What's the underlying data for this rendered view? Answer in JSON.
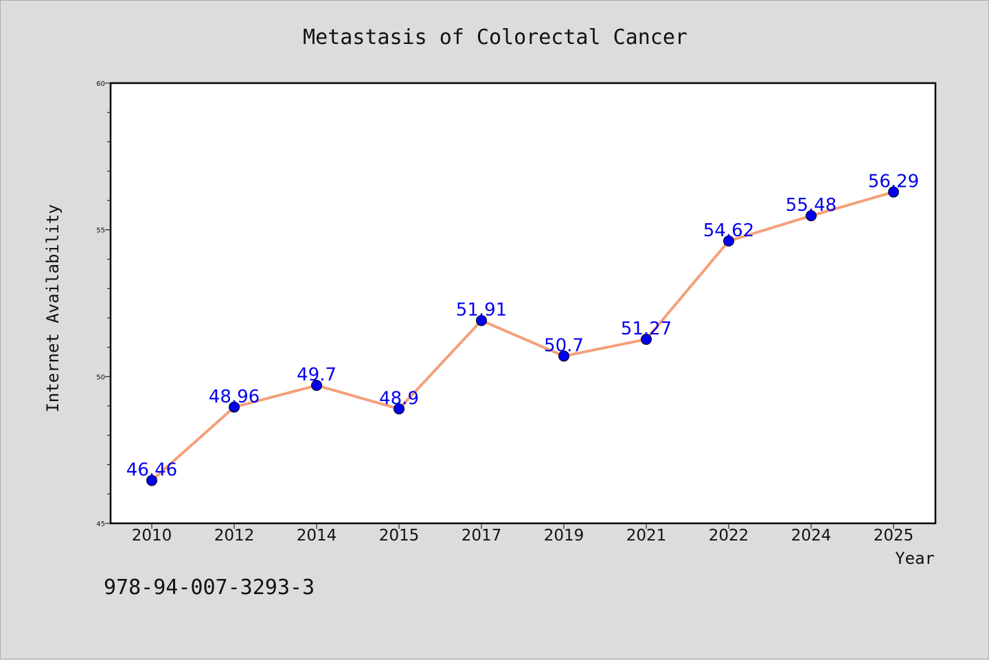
{
  "chart_data": {
    "type": "line",
    "title": "Metastasis of Colorectal Cancer",
    "xlabel": "Year",
    "ylabel": "Internet Availability",
    "categories": [
      "2010",
      "2012",
      "2014",
      "2015",
      "2017",
      "2019",
      "2021",
      "2022",
      "2024",
      "2025"
    ],
    "series": [
      {
        "values": [
          46.46,
          48.96,
          49.7,
          48.9,
          51.91,
          50.7,
          51.27,
          54.62,
          55.48,
          56.29
        ],
        "labels": [
          "46.46",
          "48.96",
          "49.7",
          "48.9",
          "51.91",
          "50.7",
          "51.27",
          "54.62",
          "55.48",
          "56.29"
        ]
      }
    ],
    "ylim": [
      45,
      60
    ],
    "yticks": [
      "45",
      "50",
      "55",
      "60"
    ],
    "grid": false,
    "line_color": "#f4a07a",
    "marker_color": "#0000ee",
    "label_color": "#0000ee"
  },
  "footer": {
    "code": "978-94-007-3293-3"
  }
}
